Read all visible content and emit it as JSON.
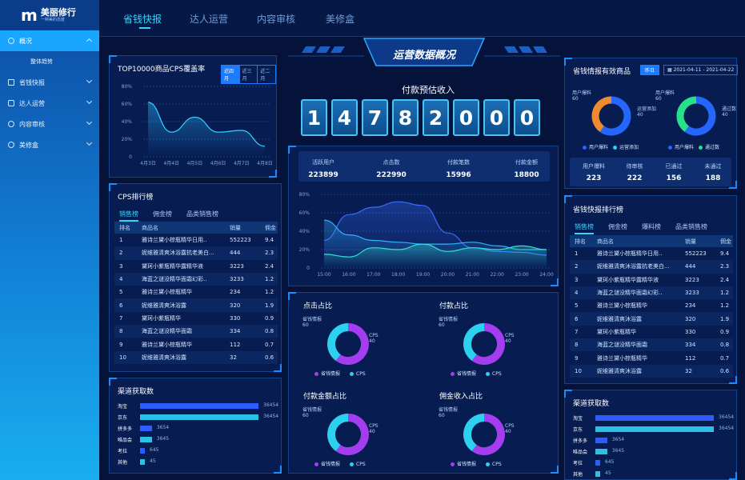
{
  "logo": {
    "mark": "m",
    "title": "美丽修行",
    "subtitle": "一种美的态度"
  },
  "sidebar": {
    "items": [
      {
        "label": "概况",
        "active": true,
        "icon": "gauge-icon"
      },
      {
        "label": "整体趋势",
        "sub": true
      },
      {
        "label": "省钱快报",
        "icon": "monitor-icon"
      },
      {
        "label": "达人运营",
        "icon": "user-icon"
      },
      {
        "label": "内容审核",
        "icon": "eye-icon"
      },
      {
        "label": "美修盒",
        "icon": "gift-icon"
      }
    ]
  },
  "topnav": {
    "tabs": [
      {
        "label": "省钱快报",
        "active": true
      },
      {
        "label": "达人运营"
      },
      {
        "label": "内容审核"
      },
      {
        "label": "美修盒"
      }
    ]
  },
  "header": {
    "title": "运营数据概况"
  },
  "coverage": {
    "title": "TOP10000商品CPS覆盖率",
    "ranges": [
      "近四月",
      "近三月",
      "近二月"
    ],
    "chart_data": {
      "type": "area",
      "categories": [
        "4月3日",
        "4月4日",
        "4月5日",
        "4月6日",
        "4月7日",
        "4月8日"
      ],
      "values": [
        62,
        28,
        45,
        28,
        30,
        12
      ],
      "yticks": [
        "80%",
        "60%",
        "40%",
        "20%",
        "0"
      ],
      "ylim": [
        0,
        80
      ]
    }
  },
  "cps": {
    "title": "CPS排行榜",
    "tabs": [
      "销售榜",
      "佣金榜",
      "品类销售榜"
    ],
    "columns": [
      "排名",
      "商品名",
      "销量",
      "佣金"
    ],
    "rows": [
      [
        "1",
        "雅诗兰黛小棕瓶精华日用..",
        "552223",
        "9.4"
      ],
      [
        "2",
        "妮维雅清爽沐浴露抗老美白...",
        "444",
        "2.3"
      ],
      [
        "3",
        "黛珂小紫瓶精华露精华液",
        "3223",
        "2.4"
      ],
      [
        "4",
        "海蓝之谜没精华面霜幻彩..",
        "3233",
        "1.2"
      ],
      [
        "5",
        "雅诗兰黛小棕瓶精华",
        "234",
        "1.2"
      ],
      [
        "6",
        "妮维雅清爽沐浴露",
        "320",
        "1.9"
      ],
      [
        "7",
        "黛珂小紫瓶精华",
        "330",
        "0.9"
      ],
      [
        "8",
        "海蓝之谜没精华面霜",
        "334",
        "0.8"
      ],
      [
        "9",
        "雅诗兰黛小棕瓶精华",
        "112",
        "0.7"
      ],
      [
        "10",
        "妮维雅清爽沐浴露",
        "32",
        "0.6"
      ]
    ]
  },
  "channel_left": {
    "title": "渠道获取数",
    "chart_data": {
      "type": "bar",
      "categories": [
        "淘宝",
        "京东",
        "拼多多",
        "唯品会",
        "考拉",
        "其他"
      ],
      "values": [
        36454,
        36454,
        3654,
        3645,
        645,
        45
      ],
      "labels": [
        "36454",
        "36454",
        "3654",
        "3645",
        "645",
        "45"
      ]
    }
  },
  "income": {
    "title": "付款预估收入",
    "digits": [
      "1",
      "4",
      "7",
      "8",
      "2",
      "0",
      "0",
      "0"
    ]
  },
  "stats": [
    {
      "label": "活跃用户",
      "value": "223899"
    },
    {
      "label": "点击数",
      "value": "222990"
    },
    {
      "label": "付款笔数",
      "value": "15996"
    },
    {
      "label": "付款金额",
      "value": "18800"
    }
  ],
  "trend": {
    "chart_data": {
      "type": "line",
      "x": [
        "15:00",
        "16:00",
        "17:00",
        "18:00",
        "19:00",
        "20:00",
        "21:00",
        "22:00",
        "23:00",
        "24:00"
      ],
      "yticks": [
        "80%",
        "60%",
        "40%",
        "20%",
        "0"
      ],
      "ylim": [
        0,
        80
      ],
      "series": [
        {
          "values": [
            30,
            58,
            66,
            72,
            68,
            38,
            22,
            18,
            17,
            14
          ],
          "color": "#3b6bff"
        },
        {
          "values": [
            52,
            36,
            30,
            28,
            26,
            26,
            28,
            24,
            20,
            20
          ],
          "color": "#2db4ff"
        },
        {
          "values": [
            15,
            12,
            22,
            20,
            26,
            18,
            22,
            20,
            24,
            20
          ],
          "color": "#33e0cf"
        }
      ]
    }
  },
  "donuts": [
    {
      "title": "点击占比",
      "chart_data": {
        "type": "pie",
        "labels": [
          "省钱情报",
          "CPS"
        ],
        "values": [
          60,
          40
        ]
      }
    },
    {
      "title": "付款占比",
      "chart_data": {
        "type": "pie",
        "labels": [
          "省钱情报",
          "CPS"
        ],
        "values": [
          60,
          40
        ]
      }
    },
    {
      "title": "付款金额占比",
      "chart_data": {
        "type": "pie",
        "labels": [
          "省钱情报",
          "CPS"
        ],
        "values": [
          60,
          40
        ]
      }
    },
    {
      "title": "佣金收入占比",
      "chart_data": {
        "type": "pie",
        "labels": [
          "省钱情报",
          "CPS"
        ],
        "values": [
          60,
          40
        ]
      }
    }
  ],
  "effective": {
    "title": "省钱情报有效商品",
    "yesterday": "昨日",
    "date_range": "2021-04-11 - 2021-04-22",
    "donut1": {
      "labels": [
        "用户爆料",
        "运营添加"
      ],
      "values": [
        60,
        40
      ],
      "tag1": "用户爆料",
      "tag1v": "60",
      "tag2": "运营添加",
      "tag2v": "40"
    },
    "donut2": {
      "labels": [
        "用户爆料",
        "通过数"
      ],
      "values": [
        60,
        40
      ],
      "tag1": "用户爆料",
      "tag1v": "60",
      "tag2": "通过数",
      "tag2v": "40"
    },
    "stats": [
      {
        "label": "用户爆料",
        "value": "223"
      },
      {
        "label": "待审核",
        "value": "222"
      },
      {
        "label": "已通过",
        "value": "156"
      },
      {
        "label": "未通过",
        "value": "188"
      }
    ]
  },
  "report": {
    "title": "省钱快报排行榜",
    "tabs": [
      "销售榜",
      "佣金榜",
      "爆料榜",
      "品类销售榜"
    ],
    "columns": [
      "排名",
      "商品名",
      "销量",
      "佣金"
    ],
    "rows": [
      [
        "1",
        "雅诗兰黛小棕瓶精华日用..",
        "552223",
        "9.4"
      ],
      [
        "2",
        "妮维雅清爽沐浴露抗老美白...",
        "444",
        "2.3"
      ],
      [
        "3",
        "黛珂小紫瓶精华露精华液",
        "3223",
        "2.4"
      ],
      [
        "4",
        "海蓝之谜没精华面霜幻彩..",
        "3233",
        "1.2"
      ],
      [
        "5",
        "雅诗兰黛小棕瓶精华",
        "234",
        "1.2"
      ],
      [
        "6",
        "妮维雅清爽沐浴露",
        "320",
        "1.9"
      ],
      [
        "7",
        "黛珂小紫瓶精华",
        "330",
        "0.9"
      ],
      [
        "8",
        "海蓝之谜没精华面霜",
        "334",
        "0.8"
      ],
      [
        "9",
        "雅诗兰黛小棕瓶精华",
        "112",
        "0.7"
      ],
      [
        "10",
        "妮维雅清爽沐浴露",
        "32",
        "0.6"
      ]
    ]
  },
  "channel_right": {
    "title": "渠道获取数",
    "chart_data": {
      "type": "bar",
      "categories": [
        "淘宝",
        "京东",
        "拼多多",
        "唯品会",
        "考拉",
        "其他"
      ],
      "values": [
        36454,
        36454,
        3654,
        3645,
        645,
        45
      ],
      "labels": [
        "36454",
        "36454",
        "3654",
        "3645",
        "645",
        "45"
      ]
    }
  },
  "colors": {
    "accent": "#33d6ff",
    "purple": "#a43df0",
    "cyan": "#2ed0f0",
    "orange": "#ef8a30",
    "blue": "#2566ff",
    "green": "#27e08a"
  }
}
